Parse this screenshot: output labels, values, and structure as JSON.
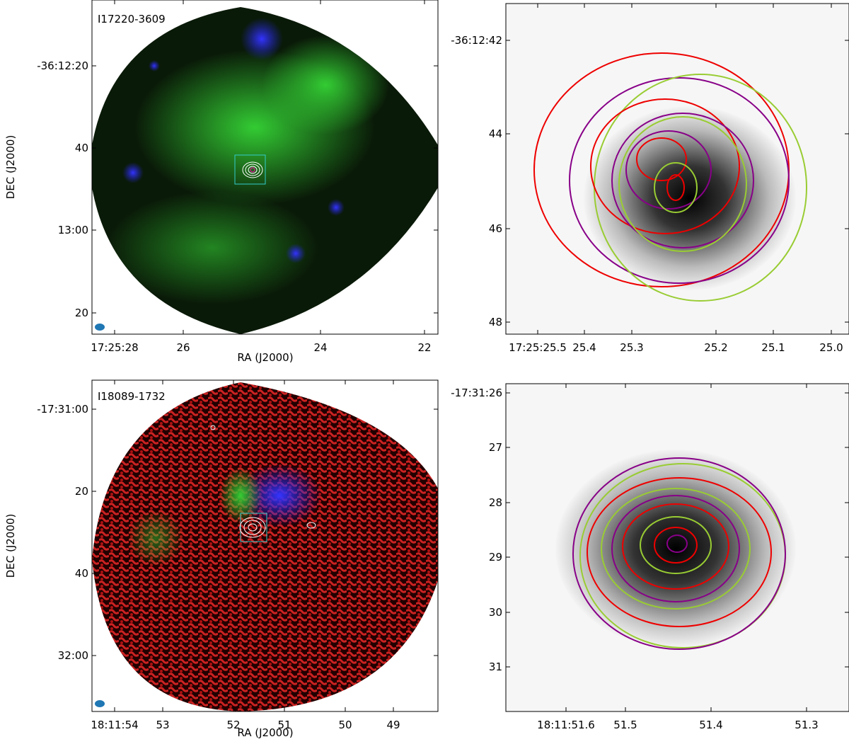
{
  "panels": [
    {
      "name": "I17220-3609",
      "xlabel": "RA (J2000)",
      "ylabel": "DEC (J2000)",
      "xticks": [
        "17:25:28",
        "26",
        "24",
        "22"
      ],
      "yticks": [
        "-36:12:20",
        "40",
        "13:00",
        "20"
      ]
    },
    {
      "xticks": [
        "17:25:25.5",
        "25.4",
        "25.3",
        "25.2",
        "25.1",
        "25.0"
      ],
      "yticks": [
        "-36:12:42",
        "44",
        "46",
        "48"
      ]
    },
    {
      "name": "I18089-1732",
      "xlabel": "RA (J2000)",
      "ylabel": "DEC (J2000)",
      "xticks": [
        "18:11:54",
        "53",
        "52",
        "51",
        "50",
        "49"
      ],
      "yticks": [
        "-17:31:00",
        "20",
        "40",
        "32:00"
      ]
    },
    {
      "xticks": [
        "18:11:51.6",
        "51.5",
        "51.4",
        "51.3"
      ],
      "yticks": [
        "-17:31:26",
        "27",
        "28",
        "29",
        "30",
        "31"
      ]
    }
  ]
}
